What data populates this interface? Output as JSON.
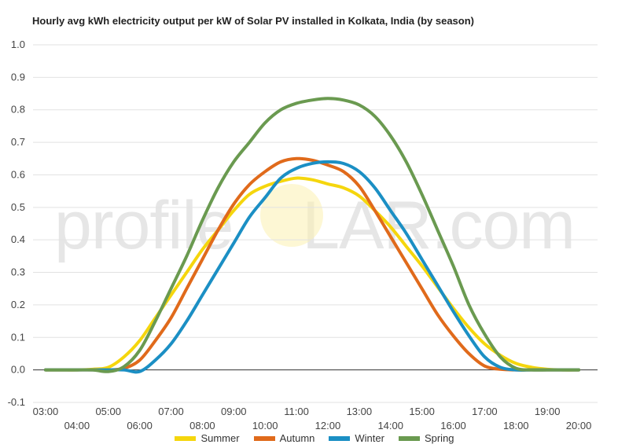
{
  "title": "Hourly avg kWh electricity output per kW of Solar PV installed in Kolkata, India (by season)",
  "watermark": {
    "left": "profile",
    "right": "LAR.com",
    "sun_color": "#fbe27a"
  },
  "chart_data": {
    "type": "line",
    "ylim": [
      -0.1,
      1.0
    ],
    "yticks": [
      "1.0",
      "0.9",
      "0.8",
      "0.7",
      "0.6",
      "0.5",
      "0.4",
      "0.3",
      "0.2",
      "0.1",
      "0.0",
      "-0.1"
    ],
    "xticks": [
      "03:00",
      "04:00",
      "05:00",
      "06:00",
      "07:00",
      "08:00",
      "09:00",
      "10:00",
      "11:00",
      "12:00",
      "13:00",
      "14:00",
      "15:00",
      "16:00",
      "17:00",
      "18:00",
      "19:00",
      "20:00"
    ],
    "x_hours": [
      3,
      3.5,
      4,
      4.5,
      5,
      5.5,
      6,
      6.5,
      7,
      7.5,
      8,
      8.5,
      9,
      9.5,
      10,
      10.5,
      11,
      11.5,
      12,
      12.5,
      13,
      13.5,
      14,
      14.5,
      15,
      15.5,
      16,
      16.5,
      17,
      17.5,
      18,
      18.5,
      19,
      19.5,
      20
    ],
    "grid": true,
    "legend": "bottom",
    "series": [
      {
        "name": "Summer",
        "color": "#f5d60d",
        "values": [
          0,
          0,
          0,
          0.002,
          0.008,
          0.04,
          0.09,
          0.16,
          0.23,
          0.3,
          0.37,
          0.43,
          0.49,
          0.54,
          0.565,
          0.58,
          0.59,
          0.585,
          0.572,
          0.56,
          0.535,
          0.49,
          0.44,
          0.38,
          0.32,
          0.255,
          0.19,
          0.13,
          0.08,
          0.045,
          0.02,
          0.008,
          0.002,
          0,
          0
        ]
      },
      {
        "name": "Autumn",
        "color": "#e06a1b",
        "values": [
          0,
          0,
          0,
          0,
          0,
          0.005,
          0.03,
          0.09,
          0.16,
          0.25,
          0.34,
          0.43,
          0.51,
          0.57,
          0.61,
          0.64,
          0.65,
          0.645,
          0.63,
          0.61,
          0.565,
          0.49,
          0.41,
          0.33,
          0.25,
          0.17,
          0.105,
          0.05,
          0.012,
          0.002,
          0,
          0,
          0,
          0,
          0
        ]
      },
      {
        "name": "Winter",
        "color": "#1b8fc4",
        "values": [
          0,
          0,
          0,
          0,
          0,
          0,
          -0.005,
          0.03,
          0.08,
          0.15,
          0.23,
          0.31,
          0.39,
          0.47,
          0.53,
          0.59,
          0.62,
          0.635,
          0.64,
          0.635,
          0.61,
          0.56,
          0.49,
          0.42,
          0.34,
          0.26,
          0.18,
          0.105,
          0.04,
          0.008,
          0,
          0,
          0,
          0,
          0
        ]
      },
      {
        "name": "Spring",
        "color": "#6a9a50",
        "values": [
          0,
          0,
          0,
          0,
          -0.005,
          0.01,
          0.06,
          0.15,
          0.25,
          0.35,
          0.46,
          0.56,
          0.64,
          0.7,
          0.76,
          0.8,
          0.82,
          0.83,
          0.835,
          0.83,
          0.815,
          0.78,
          0.72,
          0.64,
          0.54,
          0.43,
          0.32,
          0.2,
          0.11,
          0.04,
          0.005,
          0,
          0,
          0,
          0
        ]
      }
    ]
  }
}
